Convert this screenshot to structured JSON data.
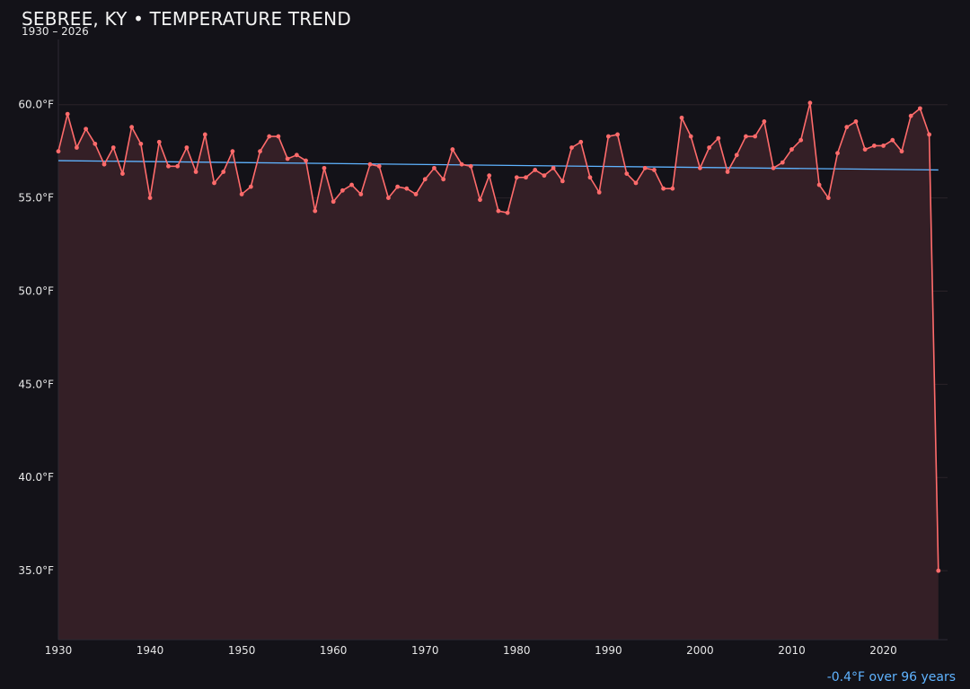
{
  "title": "SEBREE, KY • TEMPERATURE TREND",
  "subtitle": "1930 – 2026",
  "trend_note": "-0.4°F over 96 years",
  "colors": {
    "background": "#131218",
    "series_line": "#ff6b6b",
    "series_fill": "#341f26",
    "trend_line": "#5fb3ff",
    "grid": "#2a2228",
    "text": "#e6e6e6"
  },
  "chart_data": {
    "type": "line",
    "title": "SEBREE, KY • TEMPERATURE TREND",
    "subtitle": "1930 – 2026",
    "xlabel": "",
    "ylabel": "",
    "xlim": [
      1930,
      2027
    ],
    "ylim": [
      31.3,
      63.5
    ],
    "x_ticks": [
      1930,
      1940,
      1950,
      1960,
      1970,
      1980,
      1990,
      2000,
      2010,
      2020
    ],
    "y_ticks": [
      35.0,
      40.0,
      45.0,
      50.0,
      55.0,
      60.0
    ],
    "y_tick_labels": [
      "35.0°F",
      "40.0°F",
      "45.0°F",
      "50.0°F",
      "55.0°F",
      "60.0°F"
    ],
    "x_tick_labels": [
      "1930",
      "1940",
      "1950",
      "1960",
      "1970",
      "1980",
      "1990",
      "2000",
      "2010",
      "2020"
    ],
    "grid": true,
    "area_fill": true,
    "series": [
      {
        "x": [
          1930,
          1931,
          1932,
          1933,
          1934,
          1935,
          1936,
          1937,
          1938,
          1939,
          1940,
          1941,
          1942,
          1943,
          1944,
          1945,
          1946,
          1947,
          1948,
          1949,
          1950,
          1951,
          1952,
          1953,
          1954,
          1955,
          1956,
          1957,
          1958,
          1959,
          1960,
          1961,
          1962,
          1963,
          1964,
          1965,
          1966,
          1967,
          1968,
          1969,
          1970,
          1971,
          1972,
          1973,
          1974,
          1975,
          1976,
          1977,
          1978,
          1979,
          1980,
          1981,
          1982,
          1983,
          1984,
          1985,
          1986,
          1987,
          1988,
          1989,
          1990,
          1991,
          1992,
          1993,
          1994,
          1995,
          1996,
          1997,
          1998,
          1999,
          2000,
          2001,
          2002,
          2003,
          2004,
          2005,
          2006,
          2007,
          2008,
          2009,
          2010,
          2011,
          2012,
          2013,
          2014,
          2015,
          2016,
          2017,
          2018,
          2019,
          2020,
          2021,
          2022,
          2023,
          2024,
          2025,
          2026
        ],
        "values": [
          57.5,
          59.5,
          57.7,
          58.7,
          57.9,
          56.8,
          57.7,
          56.3,
          58.8,
          57.9,
          55.0,
          58.0,
          56.7,
          56.7,
          57.7,
          56.4,
          58.4,
          55.8,
          56.4,
          57.5,
          55.2,
          55.6,
          57.5,
          58.3,
          58.3,
          57.1,
          57.3,
          57.0,
          54.3,
          56.6,
          54.8,
          55.4,
          55.7,
          55.2,
          56.8,
          56.7,
          55.0,
          55.6,
          55.5,
          55.2,
          56.0,
          56.6,
          56.0,
          57.6,
          56.8,
          56.7,
          54.9,
          56.2,
          54.3,
          54.2,
          56.1,
          56.1,
          56.5,
          56.2,
          56.6,
          55.9,
          57.7,
          58.0,
          56.1,
          55.3,
          58.3,
          58.4,
          56.3,
          55.8,
          56.6,
          56.5,
          55.5,
          55.5,
          59.3,
          58.3,
          56.6,
          57.7,
          58.2,
          56.4,
          57.3,
          58.3,
          58.3,
          59.1,
          56.6,
          56.9,
          57.6,
          58.1,
          60.1,
          55.7,
          55.0,
          57.4,
          58.8,
          59.1,
          57.6,
          57.8,
          57.8,
          58.1,
          57.5,
          59.4,
          59.8,
          58.4,
          35.0
        ]
      }
    ],
    "trend": {
      "x": [
        1930,
        2026
      ],
      "values": [
        57.0,
        56.5
      ]
    }
  }
}
